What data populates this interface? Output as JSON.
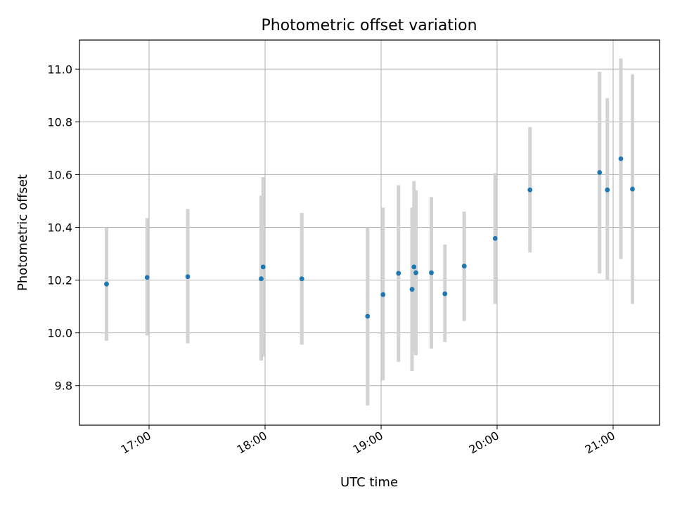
{
  "chart_data": {
    "type": "scatter",
    "title": "Photometric offset variation",
    "xlabel": "UTC time",
    "ylabel": "Photometric offset",
    "x_type": "time",
    "xlim": [
      "16:24",
      "21:24"
    ],
    "ylim": [
      9.65,
      11.11
    ],
    "x_ticks": [
      "17:00",
      "18:00",
      "19:00",
      "20:00",
      "21:00"
    ],
    "y_ticks": [
      "9.8",
      "10.0",
      "10.2",
      "10.4",
      "10.6",
      "10.8",
      "11.0"
    ],
    "grid": true,
    "colors": {
      "point": "#1f77b4",
      "errorbar": "#d3d3d3",
      "grid": "#b0b0b0"
    },
    "points": [
      {
        "x": "16:38",
        "y": 10.185,
        "ylow": 9.97,
        "yhigh": 10.4
      },
      {
        "x": "16:59",
        "y": 10.21,
        "ylow": 9.99,
        "yhigh": 10.435
      },
      {
        "x": "17:20",
        "y": 10.213,
        "ylow": 9.96,
        "yhigh": 10.47
      },
      {
        "x": "17:58",
        "y": 10.205,
        "ylow": 9.895,
        "yhigh": 10.52
      },
      {
        "x": "17:59",
        "y": 10.25,
        "ylow": 9.91,
        "yhigh": 10.59
      },
      {
        "x": "18:19",
        "y": 10.205,
        "ylow": 9.955,
        "yhigh": 10.455
      },
      {
        "x": "18:53",
        "y": 10.063,
        "ylow": 9.725,
        "yhigh": 10.4
      },
      {
        "x": "19:01",
        "y": 10.145,
        "ylow": 9.82,
        "yhigh": 10.475
      },
      {
        "x": "19:09",
        "y": 10.226,
        "ylow": 9.89,
        "yhigh": 10.56
      },
      {
        "x": "19:16",
        "y": 10.165,
        "ylow": 9.855,
        "yhigh": 10.475
      },
      {
        "x": "19:17",
        "y": 10.25,
        "ylow": 9.925,
        "yhigh": 10.575
      },
      {
        "x": "19:18",
        "y": 10.228,
        "ylow": 9.915,
        "yhigh": 10.54
      },
      {
        "x": "19:26",
        "y": 10.228,
        "ylow": 9.94,
        "yhigh": 10.515
      },
      {
        "x": "19:33",
        "y": 10.148,
        "ylow": 9.965,
        "yhigh": 10.335
      },
      {
        "x": "19:43",
        "y": 10.253,
        "ylow": 10.045,
        "yhigh": 10.46
      },
      {
        "x": "19:59",
        "y": 10.358,
        "ylow": 10.11,
        "yhigh": 10.605
      },
      {
        "x": "20:17",
        "y": 10.542,
        "ylow": 10.305,
        "yhigh": 10.78
      },
      {
        "x": "20:53",
        "y": 10.608,
        "ylow": 10.225,
        "yhigh": 10.99
      },
      {
        "x": "20:57",
        "y": 10.542,
        "ylow": 10.2,
        "yhigh": 10.89
      },
      {
        "x": "21:04",
        "y": 10.66,
        "ylow": 10.28,
        "yhigh": 11.04
      },
      {
        "x": "21:10",
        "y": 10.545,
        "ylow": 10.11,
        "yhigh": 10.98
      }
    ]
  }
}
